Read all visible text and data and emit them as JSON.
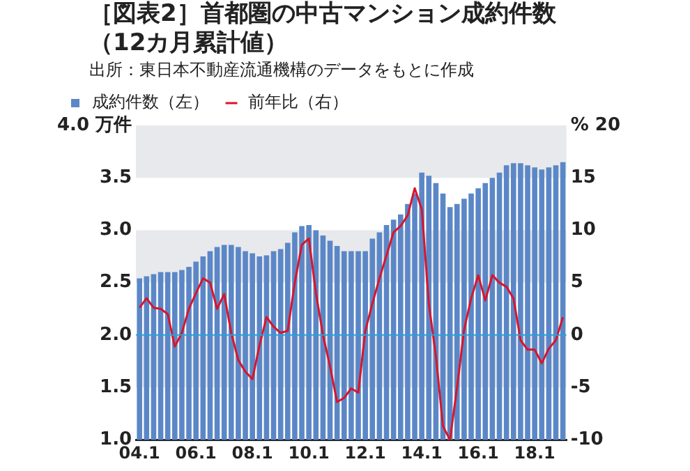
{
  "chart_data": {
    "type": "bar",
    "title": "［図表2］首都圏の中古マンション成約件数（12カ月累計値）",
    "annotations": [
      "出所：東日本不動産流通機構のデータをもとに作成"
    ],
    "categories": [
      "04.1",
      null,
      null,
      null,
      null,
      null,
      null,
      null,
      "06.1",
      null,
      null,
      null,
      null,
      null,
      null,
      null,
      "08.1",
      null,
      null,
      null,
      null,
      null,
      null,
      null,
      "10.1",
      null,
      null,
      null,
      null,
      null,
      null,
      null,
      "12.1",
      null,
      null,
      null,
      null,
      null,
      null,
      null,
      "14.1",
      null,
      null,
      null,
      null,
      null,
      null,
      null,
      "16.1",
      null,
      null,
      null,
      null,
      null,
      null,
      null,
      "18.1",
      null,
      null,
      null,
      null
    ],
    "series": [
      {
        "name": "成約件数（左）",
        "color": "#5b87c7",
        "values": [
          2.54,
          2.56,
          2.58,
          2.6,
          2.6,
          2.6,
          2.62,
          2.65,
          2.7,
          2.75,
          2.8,
          2.84,
          2.86,
          2.86,
          2.84,
          2.8,
          2.78,
          2.75,
          2.76,
          2.8,
          2.82,
          2.88,
          2.98,
          3.04,
          3.05,
          3.0,
          2.95,
          2.9,
          2.85,
          2.8,
          2.8,
          2.8,
          2.8,
          2.92,
          2.98,
          3.05,
          3.1,
          3.15,
          3.25,
          3.35,
          3.55,
          3.52,
          3.45,
          3.35,
          3.22,
          3.25,
          3.3,
          3.35,
          3.4,
          3.45,
          3.5,
          3.55,
          3.62,
          3.64,
          3.64,
          3.62,
          3.6,
          3.58,
          3.6,
          3.62,
          3.65
        ]
      },
      {
        "name": "前年比（右）",
        "type": "line",
        "axis": "y2",
        "color": "#d9142b",
        "values": [
          2.6,
          3.5,
          2.6,
          2.5,
          2.0,
          -1.1,
          0.2,
          2.5,
          4.0,
          5.4,
          5.0,
          2.5,
          3.9,
          0.2,
          -2.4,
          -3.5,
          -4.2,
          -1.0,
          1.7,
          0.8,
          0.2,
          0.4,
          5.0,
          8.6,
          9.2,
          4.0,
          0.0,
          -3.0,
          -6.4,
          -6.0,
          -5.1,
          -5.5,
          0.4,
          3.0,
          5.4,
          7.6,
          9.8,
          10.4,
          11.4,
          14.0,
          12.0,
          3.0,
          -2.0,
          -8.7,
          -10.0,
          -5.0,
          0.5,
          3.5,
          5.7,
          3.3,
          5.7,
          5.0,
          4.6,
          3.5,
          -0.5,
          -1.4,
          -1.4,
          -2.7,
          -1.3,
          -0.5,
          1.7
        ]
      }
    ],
    "ylim": [
      1.0,
      4.0
    ],
    "yticks": [
      {
        "value": 1.0,
        "label": "1.0"
      },
      1.5,
      {
        "value": 2.0,
        "label": "2.0"
      },
      2.5,
      {
        "value": 3.0,
        "label": "3.0"
      },
      3.5,
      {
        "value": 4.0,
        "label": "4.0 万件"
      }
    ],
    "y2lim": [
      -10,
      20
    ],
    "y2ticks": [
      -10,
      -5,
      0,
      5,
      10,
      15,
      {
        "value": 20,
        "label": "% 20"
      }
    ],
    "ref_lines": [
      {
        "axis": "y2",
        "value": 0,
        "color": "#2a9fd6"
      }
    ],
    "bands": [
      {
        "axis": "y",
        "from": 3.5,
        "to": 4.0,
        "color": "#e8e9ec"
      },
      {
        "axis": "y",
        "from": 2.5,
        "to": 3.0,
        "color": "#e8e9ec"
      },
      {
        "axis": "y",
        "from": 1.5,
        "to": 2.0,
        "color": "#e8e9ec"
      }
    ],
    "legend": "top left",
    "marker": "none",
    "line_style": "solid"
  }
}
